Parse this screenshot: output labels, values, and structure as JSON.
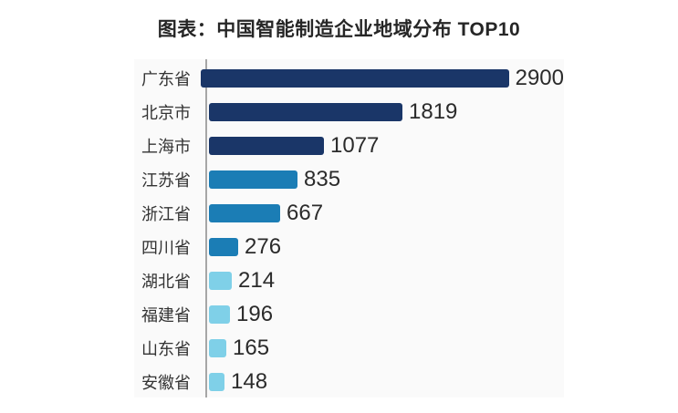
{
  "title": "图表：中国智能制造企业地域分布 TOP10",
  "chart_data": {
    "type": "bar",
    "orientation": "horizontal",
    "title": "图表：中国智能制造企业地域分布 TOP10",
    "xlabel": "",
    "ylabel": "",
    "categories": [
      "广东省",
      "北京市",
      "上海市",
      "江苏省",
      "浙江省",
      "四川省",
      "湖北省",
      "福建省",
      "山东省",
      "安徽省"
    ],
    "values": [
      2900,
      1819,
      1077,
      835,
      667,
      276,
      214,
      196,
      165,
      148
    ],
    "bar_colors": [
      "#1a3668",
      "#1a3668",
      "#1a3668",
      "#1b7db5",
      "#1b7db5",
      "#1b7db5",
      "#7fd0e8",
      "#7fd0e8",
      "#7fd0e8",
      "#7fd0e8"
    ],
    "xlim": [
      0,
      3000
    ],
    "grid": false,
    "legend": "none",
    "value_labels": "end-of-bar"
  },
  "colors": {
    "page_background": "#ffffff",
    "panel_background": "#fafafa",
    "axis_line": "#a6a6a6",
    "title_text": "#262626",
    "category_text": "#333333",
    "value_text": "#2b2b2b"
  }
}
